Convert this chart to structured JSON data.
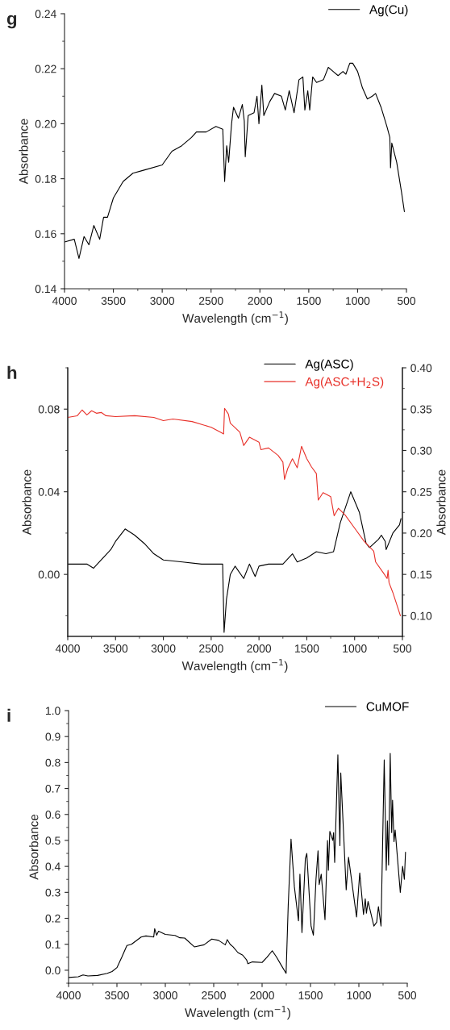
{
  "chart_data": [
    {
      "type": "line",
      "title": "g",
      "xlabel": "Wavelength (cm$^{−1}$)",
      "ylabel": "Absorbance",
      "xlim": [
        4000,
        500
      ],
      "xticks": [
        4000,
        3500,
        3000,
        2500,
        2000,
        1500,
        1000,
        500
      ],
      "ylim": [
        0.14,
        0.24
      ],
      "yticks": [
        {
          "value": 0.14,
          "label": "0.14"
        },
        {
          "value": 0.16,
          "label": "0.16"
        },
        {
          "value": 0.18,
          "label": "0.18"
        },
        {
          "value": 0.2,
          "label": "0.20"
        },
        {
          "value": 0.22,
          "label": "0.22"
        },
        {
          "value": 0.24,
          "label": "0.24"
        }
      ],
      "legend": "top right",
      "grid": false,
      "series": [
        {
          "name": "Ag(Cu)",
          "color": "#000000",
          "x": [
            4000,
            3900,
            3852,
            3800,
            3750,
            3700,
            3640,
            3600,
            3560,
            3500,
            3400,
            3300,
            3200,
            3000,
            2900,
            2800,
            2700,
            2650,
            2550,
            2450,
            2380,
            2361,
            2340,
            2320,
            2290,
            2270,
            2220,
            2180,
            2160,
            2150,
            2120,
            2060,
            2030,
            2010,
            1980,
            1960,
            1900,
            1850,
            1780,
            1740,
            1700,
            1650,
            1600,
            1560,
            1540,
            1510,
            1490,
            1460,
            1420,
            1350,
            1300,
            1250,
            1200,
            1150,
            1120,
            1080,
            1050,
            1000,
            950,
            900,
            850,
            816,
            760,
            700,
            670,
            663,
            650,
            600,
            550,
            521
          ],
          "values": [
            0.157,
            0.158,
            0.151,
            0.159,
            0.156,
            0.163,
            0.158,
            0.166,
            0.166,
            0.173,
            0.179,
            0.182,
            0.183,
            0.185,
            0.19,
            0.192,
            0.195,
            0.197,
            0.197,
            0.199,
            0.198,
            0.179,
            0.192,
            0.186,
            0.2,
            0.206,
            0.202,
            0.207,
            0.201,
            0.188,
            0.203,
            0.204,
            0.21,
            0.2,
            0.214,
            0.203,
            0.208,
            0.211,
            0.21,
            0.205,
            0.212,
            0.204,
            0.216,
            0.217,
            0.205,
            0.212,
            0.205,
            0.217,
            0.215,
            0.216,
            0.2205,
            0.219,
            0.2175,
            0.219,
            0.218,
            0.222,
            0.222,
            0.219,
            0.213,
            0.209,
            0.21,
            0.211,
            0.206,
            0.199,
            0.195,
            0.184,
            0.193,
            0.186,
            0.175,
            0.168
          ]
        }
      ]
    },
    {
      "type": "line",
      "title": "h",
      "xlabel": "Wavelength (cm$^{−1}$)",
      "ylabel": "Absorbance",
      "y2label": "Absorbance",
      "xlim": [
        4000,
        500
      ],
      "xticks": [
        4000,
        3500,
        3000,
        2500,
        2000,
        1500,
        1000,
        500
      ],
      "ylim": [
        -0.03,
        0.1
      ],
      "yticks": [
        {
          "value": 0,
          "label": "0.00"
        },
        {
          "value": 0.04,
          "label": "0.04"
        },
        {
          "value": 0.08,
          "label": "0.08"
        }
      ],
      "y2lim": [
        0.075,
        0.4
      ],
      "y2ticks": [
        {
          "value": 0.1,
          "label": "0.10"
        },
        {
          "value": 0.15,
          "label": "0.15"
        },
        {
          "value": 0.2,
          "label": "0.20"
        },
        {
          "value": 0.25,
          "label": "0.25"
        },
        {
          "value": 0.3,
          "label": "0.30"
        },
        {
          "value": 0.35,
          "label": "0.35"
        },
        {
          "value": 0.4,
          "label": "0.40"
        }
      ],
      "legend": "top right",
      "grid": false,
      "series": [
        {
          "name": "Ag(ASC)",
          "color": "#000000",
          "x": [
            4000,
            3800,
            3730,
            3650,
            3550,
            3500,
            3400,
            3300,
            3200,
            3100,
            3000,
            2800,
            2600,
            2380,
            2365,
            2340,
            2300,
            2250,
            2160,
            2100,
            2040,
            2000,
            1900,
            1750,
            1650,
            1600,
            1500,
            1400,
            1300,
            1220,
            1150,
            1040,
            950,
            880,
            844,
            750,
            720,
            680,
            670,
            600,
            530,
            515
          ],
          "values": [
            0.005,
            0.005,
            0.003,
            0.007,
            0.012,
            0.016,
            0.022,
            0.019,
            0.015,
            0.01,
            0.007,
            0.006,
            0.005,
            0.005,
            -0.028,
            -0.012,
            0.0,
            0.004,
            -0.002,
            0.005,
            -0.001,
            0.004,
            0.005,
            0.005,
            0.01,
            0.006,
            0.008,
            0.011,
            0.01,
            0.011,
            0.025,
            0.04,
            0.03,
            0.015,
            0.013,
            0.017,
            0.019,
            0.016,
            0.012,
            0.02,
            0.024,
            0.027
          ]
        },
        {
          "name": "Ag(ASC+H$_{2}$S)",
          "color": "#e8312a",
          "axis": "y2",
          "x": [
            4000,
            3900,
            3850,
            3800,
            3750,
            3700,
            3650,
            3600,
            3500,
            3300,
            3100,
            3000,
            2900,
            2700,
            2500,
            2400,
            2370,
            2360,
            2320,
            2300,
            2200,
            2160,
            2100,
            2000,
            1980,
            1900,
            1800,
            1750,
            1733,
            1700,
            1650,
            1600,
            1555,
            1500,
            1450,
            1400,
            1380,
            1330,
            1250,
            1214,
            1170,
            1100,
            1000,
            900,
            800,
            780,
            700,
            660,
            650,
            640,
            600,
            521
          ],
          "values": [
            0.34,
            0.342,
            0.349,
            0.343,
            0.348,
            0.345,
            0.346,
            0.342,
            0.341,
            0.342,
            0.34,
            0.336,
            0.338,
            0.335,
            0.328,
            0.322,
            0.32,
            0.351,
            0.344,
            0.333,
            0.322,
            0.306,
            0.316,
            0.31,
            0.301,
            0.303,
            0.294,
            0.286,
            0.265,
            0.278,
            0.29,
            0.279,
            0.305,
            0.29,
            0.28,
            0.272,
            0.24,
            0.249,
            0.244,
            0.221,
            0.23,
            0.222,
            0.206,
            0.19,
            0.178,
            0.165,
            0.152,
            0.145,
            0.155,
            0.14,
            0.128,
            0.1
          ]
        }
      ]
    },
    {
      "type": "line",
      "title": "i",
      "xlabel": "Wavelength (cm$^{−1}$)",
      "ylabel": "Absorbance",
      "xlim": [
        4000,
        500
      ],
      "xticks": [
        4000,
        3500,
        3000,
        2500,
        2000,
        1500,
        1000,
        500
      ],
      "ylim": [
        -0.05,
        1.0
      ],
      "yticks": [
        {
          "value": 0,
          "label": "0.0"
        },
        {
          "value": 0.1,
          "label": "0.1"
        },
        {
          "value": 0.2,
          "label": "0.2"
        },
        {
          "value": 0.3,
          "label": "0.3"
        },
        {
          "value": 0.4,
          "label": "0.4"
        },
        {
          "value": 0.5,
          "label": "0.5"
        },
        {
          "value": 0.6,
          "label": "0.6"
        },
        {
          "value": 0.7,
          "label": "0.7"
        },
        {
          "value": 0.8,
          "label": "0.8"
        },
        {
          "value": 0.9,
          "label": "0.9"
        },
        {
          "value": 1.0,
          "label": "1.0"
        }
      ],
      "legend": "top right",
      "grid": false,
      "series": [
        {
          "name": "CuMOF",
          "color": "#000000",
          "x": [
            4000,
            3900,
            3850,
            3800,
            3700,
            3600,
            3550,
            3500,
            3450,
            3397,
            3350,
            3250,
            3200,
            3120,
            3110,
            3090,
            3070,
            3000,
            2900,
            2850,
            2800,
            2700,
            2600,
            2520,
            2450,
            2380,
            2360,
            2330,
            2300,
            2250,
            2200,
            2160,
            2147,
            2100,
            2000,
            1950,
            1895,
            1850,
            1800,
            1752,
            1730,
            1701,
            1666,
            1624,
            1609,
            1588,
            1553,
            1538,
            1494,
            1470,
            1443,
            1422,
            1410,
            1389,
            1350,
            1324,
            1315,
            1300,
            1270,
            1261,
            1250,
            1217,
            1196,
            1187,
            1131,
            1107,
            1024,
            991,
            952,
            934,
            922,
            905,
            845,
            816,
            798,
            771,
            738,
            717,
            705,
            693,
            676,
            661,
            652,
            637,
            625,
            572,
            548,
            530,
            518
          ],
          "values": [
            -0.028,
            -0.025,
            -0.018,
            -0.022,
            -0.02,
            -0.012,
            -0.005,
            0.01,
            0.05,
            0.095,
            0.1,
            0.128,
            0.132,
            0.128,
            0.16,
            0.135,
            0.15,
            0.138,
            0.134,
            0.125,
            0.124,
            0.09,
            0.098,
            0.12,
            0.115,
            0.098,
            0.118,
            0.1,
            0.09,
            0.068,
            0.058,
            0.04,
            0.025,
            0.032,
            0.03,
            0.05,
            0.075,
            0.05,
            0.018,
            -0.012,
            0.25,
            0.505,
            0.32,
            0.19,
            0.37,
            0.145,
            0.43,
            0.45,
            0.17,
            0.135,
            0.35,
            0.46,
            0.33,
            0.37,
            0.195,
            0.5,
            0.385,
            0.535,
            0.5,
            0.53,
            0.415,
            0.83,
            0.48,
            0.76,
            0.31,
            0.435,
            0.205,
            0.375,
            0.215,
            0.275,
            0.22,
            0.265,
            0.17,
            0.185,
            0.245,
            0.17,
            0.81,
            0.385,
            0.575,
            0.405,
            0.835,
            0.53,
            0.655,
            0.495,
            0.54,
            0.3,
            0.4,
            0.35,
            0.455
          ]
        }
      ]
    }
  ]
}
